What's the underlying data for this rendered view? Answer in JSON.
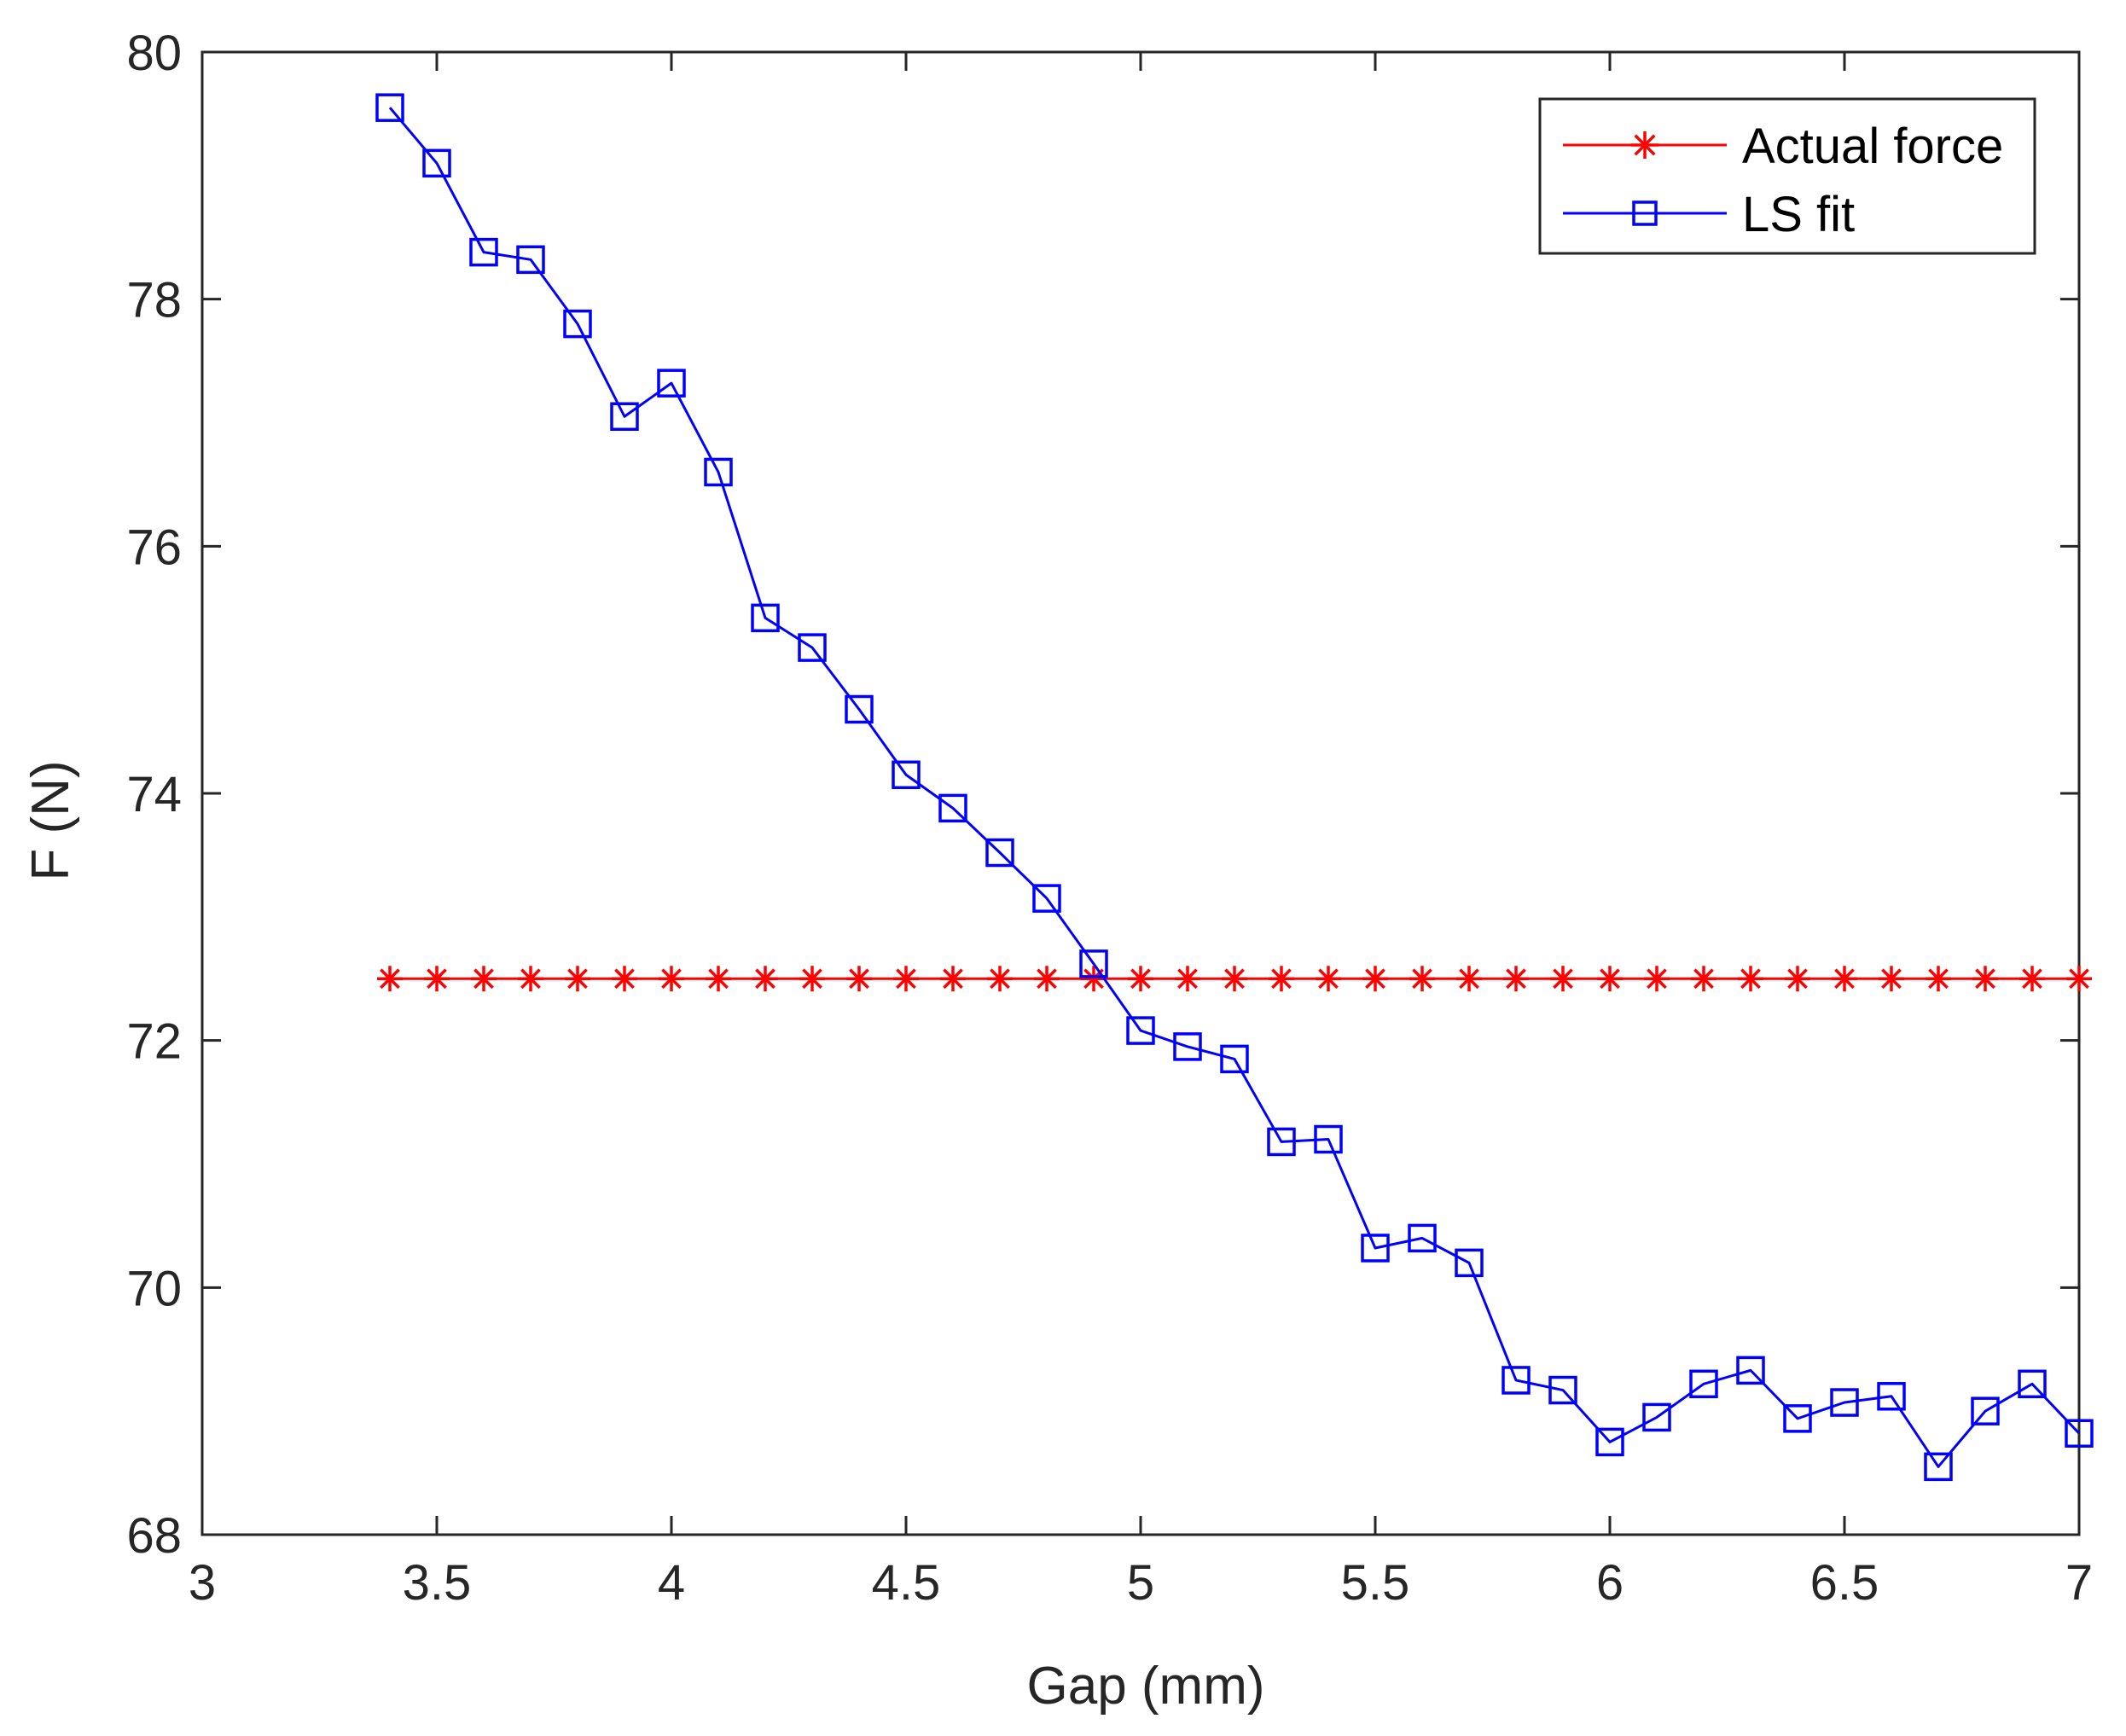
{
  "chart_data": {
    "type": "line",
    "title": "",
    "xlabel": "Gap (mm)",
    "ylabel": "F (N)",
    "xlim": [
      3,
      7
    ],
    "ylim": [
      68,
      80
    ],
    "xticks": [
      3,
      3.5,
      4,
      4.5,
      5,
      5.5,
      6,
      6.5,
      7
    ],
    "yticks": [
      68,
      70,
      72,
      74,
      76,
      78,
      80
    ],
    "xtick_labels": [
      "3",
      "3.5",
      "4",
      "4.5",
      "5",
      "5.5",
      "6",
      "6.5",
      "7"
    ],
    "ytick_labels": [
      "68",
      "70",
      "72",
      "74",
      "76",
      "78",
      "80"
    ],
    "grid": false,
    "legend_position": "top-right",
    "x": [
      3.4,
      3.5,
      3.6,
      3.7,
      3.8,
      3.9,
      4.0,
      4.1,
      4.2,
      4.3,
      4.4,
      4.5,
      4.6,
      4.7,
      4.8,
      4.9,
      5.0,
      5.1,
      5.2,
      5.3,
      5.4,
      5.5,
      5.6,
      5.7,
      5.8,
      5.9,
      6.0,
      6.1,
      6.2,
      6.3,
      6.4,
      6.5,
      6.6,
      6.7,
      6.8,
      6.9,
      7.0
    ],
    "series": [
      {
        "name": "Actual force",
        "color": "#ff0000",
        "marker": "asterisk",
        "values": [
          72.5,
          72.5,
          72.5,
          72.5,
          72.5,
          72.5,
          72.5,
          72.5,
          72.5,
          72.5,
          72.5,
          72.5,
          72.5,
          72.5,
          72.5,
          72.5,
          72.5,
          72.5,
          72.5,
          72.5,
          72.5,
          72.5,
          72.5,
          72.5,
          72.5,
          72.5,
          72.5,
          72.5,
          72.5,
          72.5,
          72.5,
          72.5,
          72.5,
          72.5,
          72.5,
          72.5,
          72.5
        ]
      },
      {
        "name": "LS fit",
        "color": "#0000ff",
        "marker": "square",
        "values": [
          79.55,
          79.1,
          78.38,
          78.32,
          77.8,
          77.05,
          77.32,
          76.6,
          75.42,
          75.18,
          74.68,
          74.15,
          73.88,
          73.52,
          73.15,
          72.62,
          72.08,
          71.95,
          71.85,
          71.18,
          71.2,
          70.32,
          70.4,
          70.2,
          69.25,
          69.17,
          68.75,
          68.95,
          69.22,
          69.33,
          68.94,
          69.07,
          69.12,
          68.55,
          69.0,
          69.22,
          68.82
        ]
      }
    ]
  }
}
